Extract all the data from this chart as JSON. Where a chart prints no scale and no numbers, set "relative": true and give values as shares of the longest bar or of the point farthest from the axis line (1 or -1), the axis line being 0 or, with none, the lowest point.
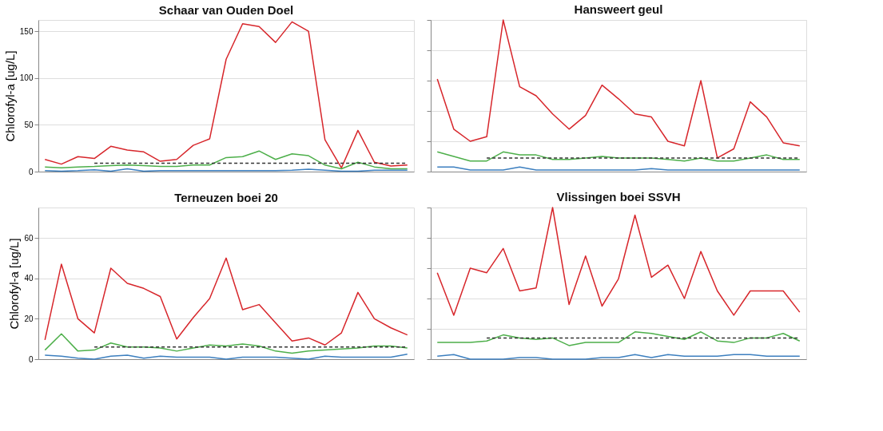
{
  "chart_data": [
    {
      "type": "line",
      "title": "Schaar van Ouden Doel",
      "ylabel": "Chlorofyl-a [ug/L]",
      "categories": [
        null,
        null,
        null,
        null,
        null,
        null,
        null,
        null,
        null,
        null,
        null,
        null,
        null,
        null,
        null,
        null,
        null,
        null,
        null,
        null,
        null,
        null,
        null
      ],
      "ylim": [
        0,
        162
      ],
      "yticks": [
        0,
        50,
        100,
        150
      ],
      "grid": "y",
      "tick_labels": "y",
      "series": [
        {
          "color": "#d7262b",
          "values": [
            13,
            8,
            16,
            14,
            27,
            23,
            21,
            11,
            13,
            28,
            35,
            120,
            158,
            155,
            138,
            160,
            150,
            34,
            4,
            44,
            10,
            6,
            7
          ]
        },
        {
          "color": "#4daf4a",
          "values": [
            5,
            4,
            5,
            5.5,
            6.5,
            7,
            6.5,
            5.5,
            5.5,
            7,
            7,
            15,
            16,
            22,
            13,
            19,
            17,
            7,
            3,
            10,
            5,
            3,
            3
          ]
        },
        {
          "color": "#3c7fbf",
          "values": [
            1,
            0.5,
            1,
            2,
            0.5,
            3,
            0.5,
            1,
            1,
            1,
            1,
            1,
            1,
            1,
            1,
            1.5,
            2.5,
            1.5,
            0.5,
            0.5,
            1.5,
            1.5,
            1.5
          ]
        },
        {
          "color": "#333333",
          "line_style": "dashed",
          "values": [
            null,
            null,
            null,
            9,
            9,
            9,
            9,
            9,
            9,
            9,
            9,
            9,
            9,
            9,
            9,
            9,
            9,
            9,
            9,
            9,
            9,
            9,
            9
          ]
        }
      ]
    },
    {
      "type": "line",
      "title": "Hansweert geul",
      "categories": [
        null,
        null,
        null,
        null,
        null,
        null,
        null,
        null,
        null,
        null,
        null,
        null,
        null,
        null,
        null,
        null,
        null,
        null,
        null,
        null,
        null,
        null,
        null
      ],
      "relative": true,
      "grid": "y",
      "series": [
        {
          "color": "#d7262b",
          "values": [
            0.61,
            0.28,
            0.2,
            0.23,
            1,
            0.56,
            0.5,
            0.38,
            0.28,
            0.37,
            0.57,
            0.48,
            0.38,
            0.36,
            0.2,
            0.17,
            0.6,
            0.09,
            0.15,
            0.46,
            0.36,
            0.19,
            0.17
          ]
        },
        {
          "color": "#4daf4a",
          "values": [
            0.13,
            0.1,
            0.07,
            0.07,
            0.13,
            0.11,
            0.11,
            0.08,
            0.08,
            0.09,
            0.1,
            0.09,
            0.09,
            0.09,
            0.08,
            0.07,
            0.09,
            0.07,
            0.07,
            0.09,
            0.11,
            0.08,
            0.08
          ]
        },
        {
          "color": "#3c7fbf",
          "values": [
            0.03,
            0.03,
            0.01,
            0.01,
            0.01,
            0.03,
            0.01,
            0.01,
            0.01,
            0.01,
            0.01,
            0.01,
            0.01,
            0.02,
            0.01,
            0.01,
            0.01,
            0.01,
            0.01,
            0.01,
            0.01,
            0.01,
            0.01
          ]
        },
        {
          "color": "#333333",
          "line_style": "dashed",
          "values": [
            null,
            null,
            null,
            0.09,
            0.09,
            0.09,
            0.09,
            0.09,
            0.09,
            0.09,
            0.09,
            0.09,
            0.09,
            0.09,
            0.09,
            0.09,
            0.09,
            0.09,
            0.09,
            0.09,
            0.09,
            0.09,
            0.09
          ]
        }
      ]
    },
    {
      "type": "line",
      "title": "Terneuzen boei 20",
      "ylabel": "Chlorofyl-a [ug/L]",
      "categories": [
        null,
        null,
        null,
        null,
        null,
        null,
        null,
        null,
        null,
        null,
        null,
        null,
        null,
        null,
        null,
        null,
        null,
        null,
        null,
        null,
        null,
        null,
        null
      ],
      "ylim": [
        0,
        75
      ],
      "yticks": [
        0,
        20,
        40,
        60
      ],
      "grid": "y",
      "tick_labels": "y",
      "series": [
        {
          "color": "#d7262b",
          "values": [
            9.5,
            47,
            20,
            13,
            45,
            37.5,
            35,
            31,
            10,
            20.5,
            30,
            50,
            24.5,
            27,
            18,
            9,
            10.5,
            7,
            13,
            33,
            20,
            15.5,
            12
          ]
        },
        {
          "color": "#4daf4a",
          "values": [
            4.5,
            12.5,
            4,
            4.5,
            8,
            6,
            6,
            5.5,
            4,
            5.5,
            7,
            6.5,
            7.5,
            6.5,
            4,
            3,
            4,
            4.5,
            5,
            5.5,
            6.5,
            6.5,
            5.5
          ]
        },
        {
          "color": "#3c7fbf",
          "values": [
            2,
            1.5,
            0.5,
            0,
            1.5,
            2,
            0.5,
            1.5,
            1,
            1,
            1,
            0,
            1,
            1,
            1,
            0.5,
            0,
            1.5,
            1,
            1,
            1,
            1,
            2.5
          ]
        },
        {
          "color": "#333333",
          "line_style": "dashed",
          "values": [
            null,
            null,
            null,
            6,
            6,
            6,
            6,
            6,
            6,
            6,
            6,
            6,
            6,
            6,
            6,
            6,
            6,
            6,
            6,
            6,
            6,
            6,
            6
          ]
        }
      ]
    },
    {
      "type": "line",
      "title": "Vlissingen boei SSVH",
      "categories": [
        null,
        null,
        null,
        null,
        null,
        null,
        null,
        null,
        null,
        null,
        null,
        null,
        null,
        null,
        null,
        null,
        null,
        null,
        null,
        null,
        null,
        null,
        null
      ],
      "relative": true,
      "grid": "y",
      "series": [
        {
          "color": "#d7262b",
          "values": [
            0.57,
            0.29,
            0.6,
            0.57,
            0.73,
            0.45,
            0.47,
            1,
            0.36,
            0.68,
            0.35,
            0.53,
            0.95,
            0.54,
            0.62,
            0.4,
            0.71,
            0.45,
            0.29,
            0.45,
            0.45,
            0.45,
            0.31
          ]
        },
        {
          "color": "#4daf4a",
          "values": [
            0.11,
            0.11,
            0.11,
            0.12,
            0.16,
            0.14,
            0.13,
            0.14,
            0.09,
            0.11,
            0.11,
            0.11,
            0.18,
            0.17,
            0.15,
            0.13,
            0.18,
            0.12,
            0.11,
            0.14,
            0.14,
            0.17,
            0.12
          ]
        },
        {
          "color": "#3c7fbf",
          "values": [
            0.02,
            0.03,
            0,
            0,
            0,
            0.01,
            0.01,
            0,
            0,
            0,
            0.01,
            0.01,
            0.03,
            0.01,
            0.03,
            0.02,
            0.02,
            0.02,
            0.03,
            0.03,
            0.02,
            0.02,
            0.02
          ]
        },
        {
          "color": "#333333",
          "line_style": "dashed",
          "values": [
            null,
            null,
            null,
            0.14,
            0.14,
            0.14,
            0.14,
            0.14,
            0.14,
            0.14,
            0.14,
            0.14,
            0.14,
            0.14,
            0.14,
            0.14,
            0.14,
            0.14,
            0.14,
            0.14,
            0.14,
            0.14,
            0.14
          ]
        }
      ]
    }
  ]
}
